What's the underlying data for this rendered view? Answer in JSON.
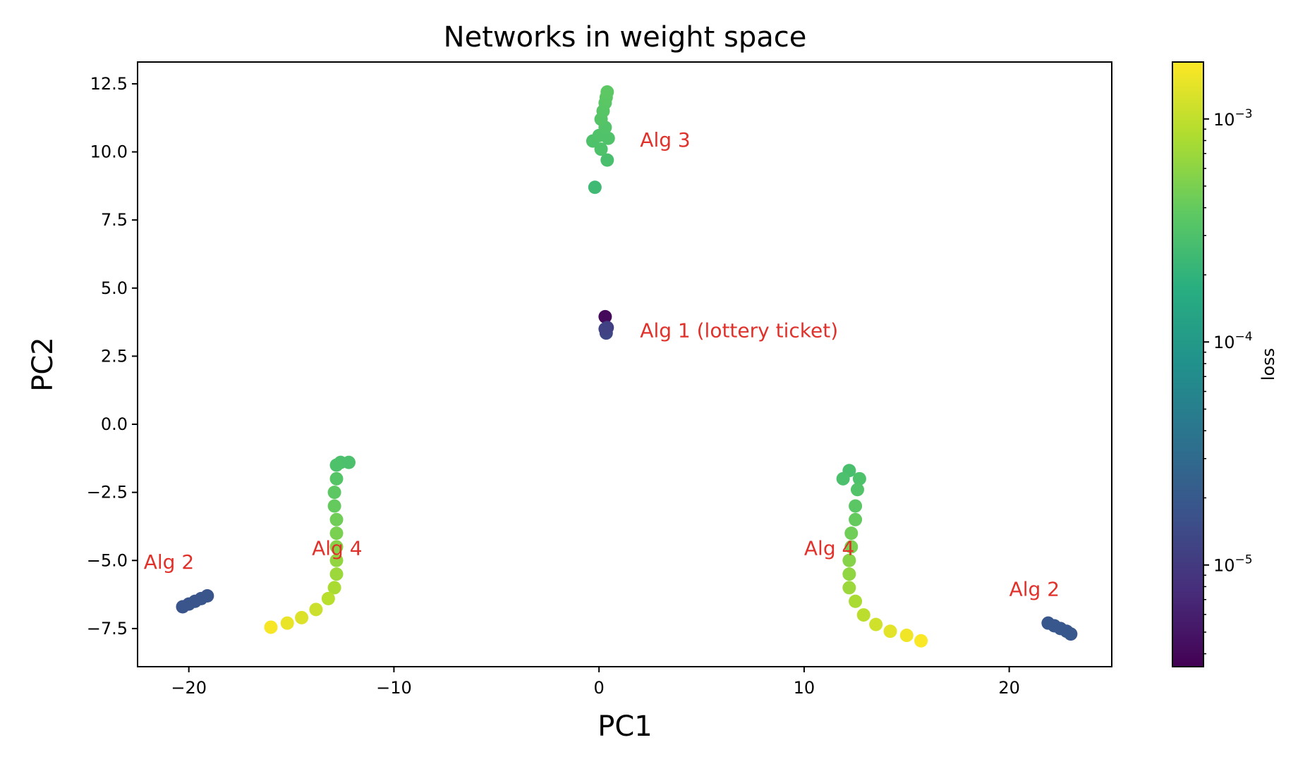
{
  "chart_data": {
    "type": "scatter",
    "title": "Networks in weight space",
    "xlabel": "PC1",
    "ylabel": "PC2",
    "xlim": [
      -22.5,
      25
    ],
    "ylim": [
      -8.9,
      13.3
    ],
    "xticks": [
      -20,
      -10,
      0,
      10,
      20
    ],
    "xtick_labels": [
      "−20",
      "−10",
      "0",
      "10",
      "20"
    ],
    "yticks": [
      12.5,
      10.0,
      7.5,
      5.0,
      2.5,
      0.0,
      -2.5,
      -5.0,
      -7.5
    ],
    "ytick_labels": [
      "12.5",
      "10.0",
      "7.5",
      "5.0",
      "2.5",
      "0.0",
      "−2.5",
      "−5.0",
      "−7.5"
    ],
    "grid": false,
    "colormap": "viridis",
    "colorbar": {
      "label": "loss",
      "scale": "log",
      "range": [
        3.5e-06,
        0.0018
      ],
      "ticks": [
        {
          "value": 0.001,
          "base": "10",
          "exp": "−3"
        },
        {
          "value": 0.0001,
          "base": "10",
          "exp": "−4"
        },
        {
          "value": 1e-05,
          "base": "10",
          "exp": "−5"
        }
      ]
    },
    "annotations": [
      {
        "text": "Alg 3",
        "x": 2.0,
        "y": 10.2
      },
      {
        "text": "Alg 1 (lottery ticket)",
        "x": 2.0,
        "y": 3.2
      },
      {
        "text": "Alg 2",
        "x": -22.2,
        "y": -5.3
      },
      {
        "text": "Alg 4",
        "x": -14.0,
        "y": -4.8
      },
      {
        "text": "Alg 4",
        "x": 10.0,
        "y": -4.8
      },
      {
        "text": "Alg 2",
        "x": 20.0,
        "y": -6.3
      }
    ],
    "series": [
      {
        "points": [
          {
            "x": 0.3,
            "y": 3.95,
            "loss": 4e-06
          },
          {
            "x": 0.4,
            "y": 3.55,
            "loss": 1.1e-05
          },
          {
            "x": 0.35,
            "y": 3.35,
            "loss": 1.3e-05
          },
          {
            "x": 0.3,
            "y": 3.5,
            "loss": 1.2e-05
          }
        ]
      },
      {
        "points": [
          {
            "x": -20.3,
            "y": -6.7,
            "loss": 1.8e-05
          },
          {
            "x": -20.0,
            "y": -6.6,
            "loss": 1.8e-05
          },
          {
            "x": -19.7,
            "y": -6.5,
            "loss": 1.8e-05
          },
          {
            "x": -19.4,
            "y": -6.4,
            "loss": 1.8e-05
          },
          {
            "x": -19.1,
            "y": -6.3,
            "loss": 1.8e-05
          }
        ]
      },
      {
        "points": [
          {
            "x": 21.9,
            "y": -7.3,
            "loss": 1.9e-05
          },
          {
            "x": 22.2,
            "y": -7.4,
            "loss": 1.9e-05
          },
          {
            "x": 22.5,
            "y": -7.5,
            "loss": 1.9e-05
          },
          {
            "x": 22.8,
            "y": -7.6,
            "loss": 1.9e-05
          },
          {
            "x": 23.0,
            "y": -7.7,
            "loss": 1.9e-05
          }
        ]
      },
      {
        "points": [
          {
            "x": -0.2,
            "y": 8.7,
            "loss": 0.00024
          },
          {
            "x": 0.4,
            "y": 9.7,
            "loss": 0.00028
          },
          {
            "x": 0.1,
            "y": 10.1,
            "loss": 0.0003
          },
          {
            "x": -0.3,
            "y": 10.4,
            "loss": 0.0003
          },
          {
            "x": 0.45,
            "y": 10.5,
            "loss": 0.00031
          },
          {
            "x": 0.0,
            "y": 10.6,
            "loss": 0.00031
          },
          {
            "x": 0.3,
            "y": 10.9,
            "loss": 0.00032
          },
          {
            "x": 0.1,
            "y": 11.2,
            "loss": 0.00033
          },
          {
            "x": 0.2,
            "y": 11.5,
            "loss": 0.00034
          },
          {
            "x": 0.3,
            "y": 11.8,
            "loss": 0.00035
          },
          {
            "x": 0.35,
            "y": 12.0,
            "loss": 0.00036
          },
          {
            "x": 0.4,
            "y": 12.2,
            "loss": 0.00037
          }
        ]
      },
      {
        "points": [
          {
            "x": -12.2,
            "y": -1.4,
            "loss": 0.00029
          },
          {
            "x": -12.6,
            "y": -1.4,
            "loss": 0.00029
          },
          {
            "x": -12.8,
            "y": -1.5,
            "loss": 0.0003
          },
          {
            "x": -12.8,
            "y": -2.0,
            "loss": 0.00033
          },
          {
            "x": -12.9,
            "y": -2.5,
            "loss": 0.00037
          },
          {
            "x": -12.9,
            "y": -3.0,
            "loss": 0.0004
          },
          {
            "x": -12.8,
            "y": -3.5,
            "loss": 0.00045
          },
          {
            "x": -12.8,
            "y": -4.0,
            "loss": 0.0005
          },
          {
            "x": -12.8,
            "y": -4.5,
            "loss": 0.00056
          },
          {
            "x": -12.8,
            "y": -5.0,
            "loss": 0.00063
          },
          {
            "x": -12.8,
            "y": -5.5,
            "loss": 0.0007
          },
          {
            "x": -12.9,
            "y": -6.0,
            "loss": 0.0008
          },
          {
            "x": -13.2,
            "y": -6.4,
            "loss": 0.00092
          },
          {
            "x": -13.8,
            "y": -6.8,
            "loss": 0.0011
          },
          {
            "x": -14.5,
            "y": -7.1,
            "loss": 0.0013
          },
          {
            "x": -15.2,
            "y": -7.3,
            "loss": 0.0015
          },
          {
            "x": -16.0,
            "y": -7.45,
            "loss": 0.0017
          }
        ]
      },
      {
        "points": [
          {
            "x": 12.2,
            "y": -1.7,
            "loss": 0.00028
          },
          {
            "x": 11.9,
            "y": -2.0,
            "loss": 0.00029
          },
          {
            "x": 12.7,
            "y": -2.0,
            "loss": 0.0003
          },
          {
            "x": 12.6,
            "y": -2.4,
            "loss": 0.00032
          },
          {
            "x": 12.5,
            "y": -3.0,
            "loss": 0.00036
          },
          {
            "x": 12.5,
            "y": -3.5,
            "loss": 0.0004
          },
          {
            "x": 12.3,
            "y": -4.0,
            "loss": 0.00045
          },
          {
            "x": 12.3,
            "y": -4.5,
            "loss": 0.0005
          },
          {
            "x": 12.2,
            "y": -5.0,
            "loss": 0.00056
          },
          {
            "x": 12.2,
            "y": -5.5,
            "loss": 0.00062
          },
          {
            "x": 12.2,
            "y": -6.0,
            "loss": 0.0007
          },
          {
            "x": 12.5,
            "y": -6.5,
            "loss": 0.0008
          },
          {
            "x": 12.9,
            "y": -7.0,
            "loss": 0.00095
          },
          {
            "x": 13.5,
            "y": -7.35,
            "loss": 0.00115
          },
          {
            "x": 14.2,
            "y": -7.6,
            "loss": 0.0014
          },
          {
            "x": 15.0,
            "y": -7.75,
            "loss": 0.0016
          },
          {
            "x": 15.7,
            "y": -7.95,
            "loss": 0.00175
          }
        ]
      }
    ]
  }
}
